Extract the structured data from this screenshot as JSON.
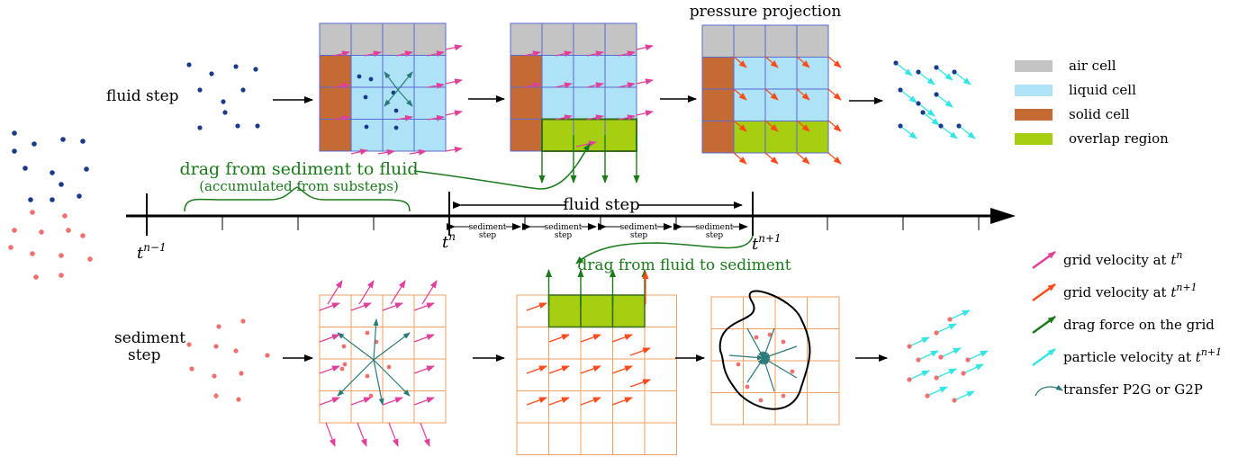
{
  "labels": {
    "fluid_step": "fluid step",
    "sediment_step": "sediment step",
    "sediment_step_line1": "sediment",
    "sediment_step_line2": "step",
    "pressure_projection": "pressure projection",
    "fluid_step_arrow": "fluid step",
    "sub_step_1": "step",
    "drag_sed_to_fluid": "drag from sediment to fluid",
    "drag_sed_to_fluid_sub": "(accumulated from substeps)",
    "drag_fluid_to_sed": "drag from fluid to sediment",
    "t_prev": "t",
    "t_prev_sup": "n−1",
    "t_n": "t",
    "t_n_sup": "n",
    "t_next": "t",
    "t_next_sup": "n+1",
    "substep": "sediment\nstep"
  },
  "legend_cells": [
    {
      "label": "air cell",
      "color": "#c4c4c4"
    },
    {
      "label": "liquid cell",
      "color": "#aee3f7"
    },
    {
      "label": "solid cell",
      "color": "#c46a35"
    },
    {
      "label": "overlap region",
      "color": "#a5cf10"
    }
  ],
  "legend_arrows": [
    {
      "label": "grid velocity at ",
      "sup_base": "t",
      "sup": "n",
      "color": "#e0409a"
    },
    {
      "label": "grid velocity at ",
      "sup_base": "t",
      "sup": "n+1",
      "color": "#ff4a1a"
    },
    {
      "label": "drag force on the grid",
      "sup_base": "",
      "sup": "",
      "color": "#1a7a1a"
    },
    {
      "label": "particle velocity at ",
      "sup_base": "t",
      "sup": "n+1",
      "color": "#33e6e6"
    },
    {
      "label": "transfer P2G or G2P",
      "sup_base": "",
      "sup": "",
      "color": "#2a7a78"
    }
  ],
  "colors": {
    "fluid_particle": "#1a3a8a",
    "sediment_particle": "#f07070",
    "grid_fluid": "#5a6ad0",
    "grid_sediment": "#f0a060"
  }
}
